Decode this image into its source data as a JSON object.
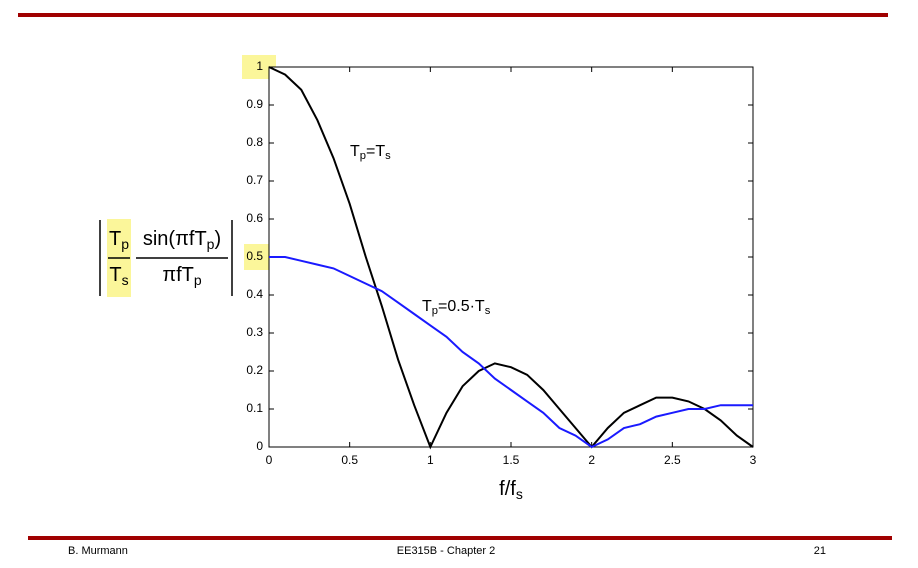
{
  "chart_data": {
    "type": "line",
    "x": [
      0,
      0.1,
      0.2,
      0.3,
      0.4,
      0.5,
      0.6,
      0.7,
      0.8,
      0.9,
      1,
      1.1,
      1.2,
      1.3,
      1.4,
      1.5,
      1.6,
      1.7,
      1.8,
      1.9,
      2,
      2.1,
      2.2,
      2.3,
      2.4,
      2.5,
      2.6,
      2.7,
      2.8,
      2.9,
      3
    ],
    "series": [
      {
        "color": "#000000",
        "values": [
          1,
          0.98,
          0.94,
          0.86,
          0.76,
          0.64,
          0.5,
          0.37,
          0.23,
          0.11,
          0,
          0.09,
          0.16,
          0.2,
          0.22,
          0.21,
          0.19,
          0.15,
          0.1,
          0.05,
          0,
          0.05,
          0.09,
          0.11,
          0.13,
          0.13,
          0.12,
          0.1,
          0.07,
          0.03,
          0
        ]
      },
      {
        "color": "#1a1aff",
        "values": [
          0.5,
          0.5,
          0.49,
          0.48,
          0.47,
          0.45,
          0.43,
          0.41,
          0.38,
          0.35,
          0.32,
          0.29,
          0.25,
          0.22,
          0.18,
          0.15,
          0.12,
          0.09,
          0.05,
          0.03,
          0,
          0.02,
          0.05,
          0.06,
          0.08,
          0.09,
          0.1,
          0.1,
          0.11,
          0.11,
          0.11
        ]
      }
    ],
    "xlim": [
      0,
      3
    ],
    "xticks": [
      0,
      0.5,
      1,
      1.5,
      2,
      2.5,
      3
    ],
    "ylim": [
      0,
      1
    ],
    "yticks": [
      0,
      0.1,
      0.2,
      0.3,
      0.4,
      0.5,
      0.6,
      0.7,
      0.8,
      0.9,
      1
    ],
    "x_label": [
      "f/f",
      "s"
    ],
    "y_label": {
      "ratio_num": [
        "T",
        "p"
      ],
      "ratio_den": [
        "T",
        "s"
      ],
      "sinc_num": [
        "sin(πfT",
        "p",
        ")"
      ],
      "sinc_den": [
        "πfT",
        "p"
      ]
    },
    "annotations": [
      [
        "T",
        "p",
        "=T",
        "s"
      ],
      [
        "T",
        "p",
        "=0.5·T",
        "s"
      ]
    ]
  },
  "footer": {
    "author": "B. Murmann",
    "course": "EE315B - Chapter 2",
    "page": "21"
  }
}
